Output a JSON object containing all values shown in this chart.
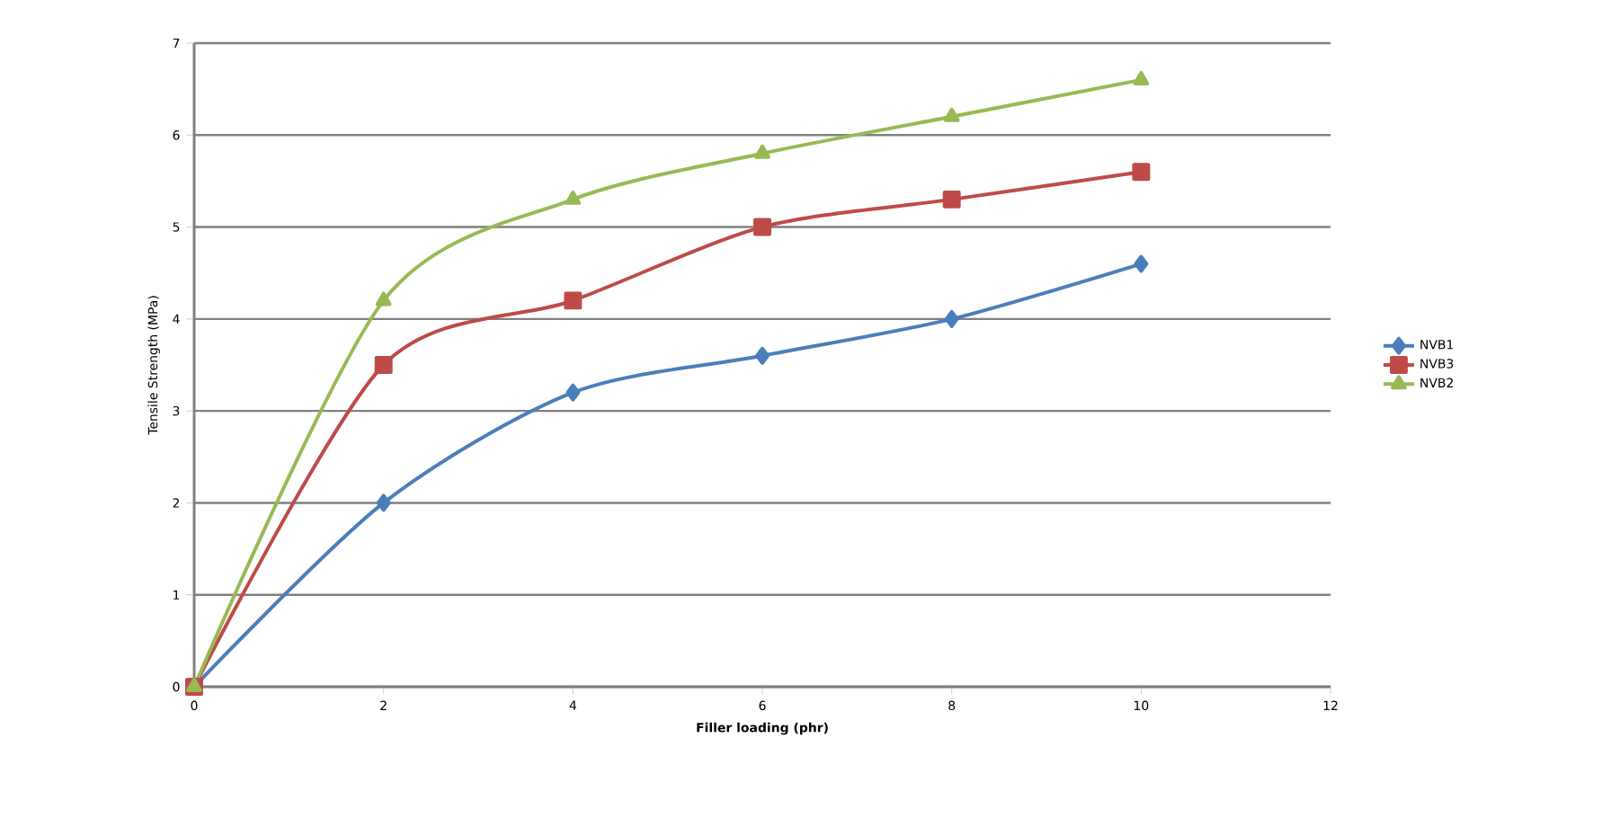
{
  "chart_data": {
    "type": "line",
    "xlabel": "Filler loading (phr)",
    "ylabel": "Tensile Strength (MPa)",
    "x": [
      0,
      2,
      4,
      6,
      8,
      10
    ],
    "series": [
      {
        "name": "NVB1",
        "color": "#4a7ebb",
        "marker": "diamond",
        "values": [
          0,
          2,
          3.2,
          3.6,
          4,
          4.6
        ]
      },
      {
        "name": "NVB3",
        "color": "#be4b48",
        "marker": "square",
        "values": [
          0,
          3.5,
          4.2,
          5,
          5.3,
          5.6
        ]
      },
      {
        "name": "NVB2",
        "color": "#98b954",
        "marker": "triangle",
        "values": [
          0,
          4.2,
          5.3,
          5.8,
          6.2,
          6.6
        ]
      }
    ],
    "xlim": [
      0,
      12
    ],
    "ylim": [
      0,
      7
    ],
    "xticks": [
      0,
      2,
      4,
      6,
      8,
      10,
      12
    ],
    "yticks": [
      0,
      1,
      2,
      3,
      4,
      5,
      6,
      7
    ],
    "grid": "y",
    "legend": "right",
    "line_style": "solid"
  }
}
